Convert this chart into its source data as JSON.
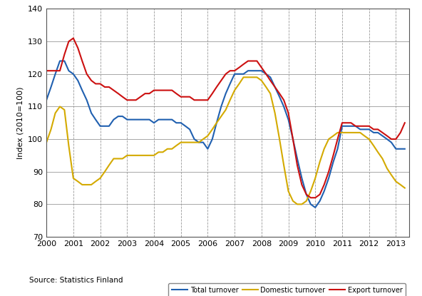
{
  "ylabel": "Index (2010=100)",
  "source": "Source: Statistics Finland",
  "xlim": [
    2000.0,
    2013.5
  ],
  "ylim": [
    70,
    140
  ],
  "yticks": [
    70,
    80,
    90,
    100,
    110,
    120,
    130,
    140
  ],
  "xtick_labels": [
    "2000",
    "2001",
    "2002",
    "2003",
    "2004",
    "2005",
    "2006",
    "2007",
    "2008",
    "2009",
    "2010",
    "2011",
    "2012",
    "2013"
  ],
  "xtick_positions": [
    2000,
    2001,
    2002,
    2003,
    2004,
    2005,
    2006,
    2007,
    2008,
    2009,
    2010,
    2011,
    2012,
    2013
  ],
  "colors": {
    "total": "#2060b0",
    "domestic": "#d4aa00",
    "export": "#cc1010"
  },
  "legend_labels": [
    "Total turnover",
    "Domestic turnover",
    "Export turnover"
  ],
  "total_x": [
    2000.0,
    2000.17,
    2000.33,
    2000.5,
    2000.67,
    2000.83,
    2001.0,
    2001.17,
    2001.33,
    2001.5,
    2001.67,
    2001.83,
    2002.0,
    2002.17,
    2002.33,
    2002.5,
    2002.67,
    2002.83,
    2003.0,
    2003.17,
    2003.33,
    2003.5,
    2003.67,
    2003.83,
    2004.0,
    2004.17,
    2004.33,
    2004.5,
    2004.67,
    2004.83,
    2005.0,
    2005.17,
    2005.33,
    2005.5,
    2005.67,
    2005.83,
    2006.0,
    2006.17,
    2006.33,
    2006.5,
    2006.67,
    2006.83,
    2007.0,
    2007.17,
    2007.33,
    2007.5,
    2007.67,
    2007.83,
    2008.0,
    2008.17,
    2008.33,
    2008.5,
    2008.67,
    2008.83,
    2009.0,
    2009.17,
    2009.33,
    2009.5,
    2009.67,
    2009.83,
    2010.0,
    2010.17,
    2010.33,
    2010.5,
    2010.67,
    2010.83,
    2011.0,
    2011.17,
    2011.33,
    2011.5,
    2011.67,
    2011.83,
    2012.0,
    2012.17,
    2012.33,
    2012.5,
    2012.67,
    2012.83,
    2013.0,
    2013.17,
    2013.33
  ],
  "total_y": [
    112,
    116,
    120,
    124,
    124,
    121,
    120,
    118,
    115,
    112,
    108,
    106,
    104,
    104,
    104,
    106,
    107,
    107,
    106,
    106,
    106,
    106,
    106,
    106,
    105,
    106,
    106,
    106,
    106,
    105,
    105,
    104,
    103,
    100,
    99,
    99,
    97,
    100,
    105,
    110,
    114,
    117,
    120,
    120,
    120,
    121,
    121,
    121,
    121,
    120,
    119,
    116,
    113,
    110,
    106,
    100,
    94,
    88,
    83,
    80,
    79,
    81,
    84,
    88,
    93,
    97,
    104,
    104,
    104,
    104,
    103,
    103,
    103,
    102,
    102,
    101,
    100,
    99,
    97,
    97,
    97
  ],
  "domestic_x": [
    2000.0,
    2000.17,
    2000.33,
    2000.5,
    2000.67,
    2000.83,
    2001.0,
    2001.17,
    2001.33,
    2001.5,
    2001.67,
    2001.83,
    2002.0,
    2002.17,
    2002.33,
    2002.5,
    2002.67,
    2002.83,
    2003.0,
    2003.17,
    2003.33,
    2003.5,
    2003.67,
    2003.83,
    2004.0,
    2004.17,
    2004.33,
    2004.5,
    2004.67,
    2004.83,
    2005.0,
    2005.17,
    2005.33,
    2005.5,
    2005.67,
    2005.83,
    2006.0,
    2006.17,
    2006.33,
    2006.5,
    2006.67,
    2006.83,
    2007.0,
    2007.17,
    2007.33,
    2007.5,
    2007.67,
    2007.83,
    2008.0,
    2008.17,
    2008.33,
    2008.5,
    2008.67,
    2008.83,
    2009.0,
    2009.17,
    2009.33,
    2009.5,
    2009.67,
    2009.83,
    2010.0,
    2010.17,
    2010.33,
    2010.5,
    2010.67,
    2010.83,
    2011.0,
    2011.17,
    2011.33,
    2011.5,
    2011.67,
    2011.83,
    2012.0,
    2012.17,
    2012.33,
    2012.5,
    2012.67,
    2012.83,
    2013.0,
    2013.17,
    2013.33
  ],
  "domestic_y": [
    99,
    103,
    108,
    110,
    109,
    98,
    88,
    87,
    86,
    86,
    86,
    87,
    88,
    90,
    92,
    94,
    94,
    94,
    95,
    95,
    95,
    95,
    95,
    95,
    95,
    96,
    96,
    97,
    97,
    98,
    99,
    99,
    99,
    99,
    99,
    100,
    101,
    103,
    105,
    107,
    109,
    112,
    115,
    117,
    119,
    119,
    119,
    119,
    118,
    116,
    114,
    108,
    100,
    92,
    84,
    81,
    80,
    80,
    81,
    84,
    88,
    93,
    97,
    100,
    101,
    102,
    102,
    102,
    102,
    102,
    102,
    101,
    100,
    98,
    96,
    94,
    91,
    89,
    87,
    86,
    85
  ],
  "export_x": [
    2000.0,
    2000.17,
    2000.33,
    2000.5,
    2000.67,
    2000.83,
    2001.0,
    2001.17,
    2001.33,
    2001.5,
    2001.67,
    2001.83,
    2002.0,
    2002.17,
    2002.33,
    2002.5,
    2002.67,
    2002.83,
    2003.0,
    2003.17,
    2003.33,
    2003.5,
    2003.67,
    2003.83,
    2004.0,
    2004.17,
    2004.33,
    2004.5,
    2004.67,
    2004.83,
    2005.0,
    2005.17,
    2005.33,
    2005.5,
    2005.67,
    2005.83,
    2006.0,
    2006.17,
    2006.33,
    2006.5,
    2006.67,
    2006.83,
    2007.0,
    2007.17,
    2007.33,
    2007.5,
    2007.67,
    2007.83,
    2008.0,
    2008.17,
    2008.33,
    2008.5,
    2008.67,
    2008.83,
    2009.0,
    2009.17,
    2009.33,
    2009.5,
    2009.67,
    2009.83,
    2010.0,
    2010.17,
    2010.33,
    2010.5,
    2010.67,
    2010.83,
    2011.0,
    2011.17,
    2011.33,
    2011.5,
    2011.67,
    2011.83,
    2012.0,
    2012.17,
    2012.33,
    2012.5,
    2012.67,
    2012.83,
    2013.0,
    2013.17,
    2013.33
  ],
  "export_y": [
    121,
    121,
    121,
    121,
    126,
    130,
    131,
    128,
    124,
    120,
    118,
    117,
    117,
    116,
    116,
    115,
    114,
    113,
    112,
    112,
    112,
    113,
    114,
    114,
    115,
    115,
    115,
    115,
    115,
    114,
    113,
    113,
    113,
    112,
    112,
    112,
    112,
    114,
    116,
    118,
    120,
    121,
    121,
    122,
    123,
    124,
    124,
    124,
    122,
    120,
    118,
    116,
    114,
    112,
    108,
    100,
    92,
    86,
    83,
    82,
    82,
    83,
    86,
    90,
    95,
    100,
    105,
    105,
    105,
    104,
    104,
    104,
    104,
    103,
    103,
    102,
    101,
    100,
    100,
    102,
    105
  ],
  "background_color": "#ffffff",
  "grid_color": "#999999",
  "linewidth": 1.5
}
